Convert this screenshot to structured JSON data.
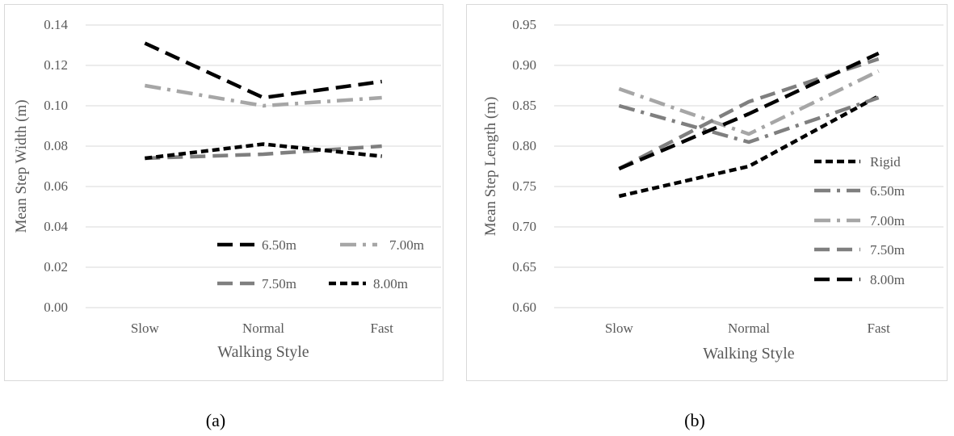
{
  "captions": {
    "a": "(a)",
    "b": "(b)"
  },
  "chart_data": [
    {
      "type": "line",
      "categories": [
        "Slow",
        "Normal",
        "Fast"
      ],
      "xlabel": "Walking Style",
      "ylabel": "Mean Step Width (m)",
      "ylim": [
        0,
        0.14
      ],
      "ytick_step": 0.02,
      "ytick_labels": [
        "0.00",
        "0.02",
        "0.04",
        "0.06",
        "0.08",
        "0.10",
        "0.12",
        "0.14"
      ],
      "grid": true,
      "legend_position": "bottom-right",
      "series": [
        {
          "name": "6.50m",
          "values": [
            0.131,
            0.104,
            0.112
          ],
          "color": "#000000",
          "dash": "long-dash"
        },
        {
          "name": "7.00m",
          "values": [
            0.11,
            0.1,
            0.104
          ],
          "color": "#a6a6a6",
          "dash": "long-dash-dot"
        },
        {
          "name": "7.50m",
          "values": [
            0.074,
            0.076,
            0.08
          ],
          "color": "#7f7f7f",
          "dash": "long-dash"
        },
        {
          "name": "8.00m",
          "values": [
            0.074,
            0.081,
            0.075
          ],
          "color": "#000000",
          "dash": "dash"
        }
      ]
    },
    {
      "type": "line",
      "categories": [
        "Slow",
        "Normal",
        "Fast"
      ],
      "xlabel": "Walking Style",
      "ylabel": "Mean Step Length (m)",
      "ylim": [
        0.6,
        0.95
      ],
      "ytick_step": 0.05,
      "ytick_labels": [
        "0.60",
        "0.65",
        "0.70",
        "0.75",
        "0.80",
        "0.85",
        "0.90",
        "0.95"
      ],
      "grid": true,
      "legend_position": "right",
      "series": [
        {
          "name": "Rigid",
          "values": [
            0.738,
            0.775,
            0.862
          ],
          "color": "#000000",
          "dash": "dash"
        },
        {
          "name": "6.50m",
          "values": [
            0.85,
            0.805,
            0.86
          ],
          "color": "#7f7f7f",
          "dash": "long-dash-dot"
        },
        {
          "name": "7.00m",
          "values": [
            0.871,
            0.815,
            0.893
          ],
          "color": "#a6a6a6",
          "dash": "long-dash-dot"
        },
        {
          "name": "7.50m",
          "values": [
            0.772,
            0.855,
            0.908
          ],
          "color": "#7f7f7f",
          "dash": "long-dash"
        },
        {
          "name": "8.00m",
          "values": [
            0.772,
            0.84,
            0.915
          ],
          "color": "#000000",
          "dash": "long-dash"
        }
      ]
    }
  ]
}
